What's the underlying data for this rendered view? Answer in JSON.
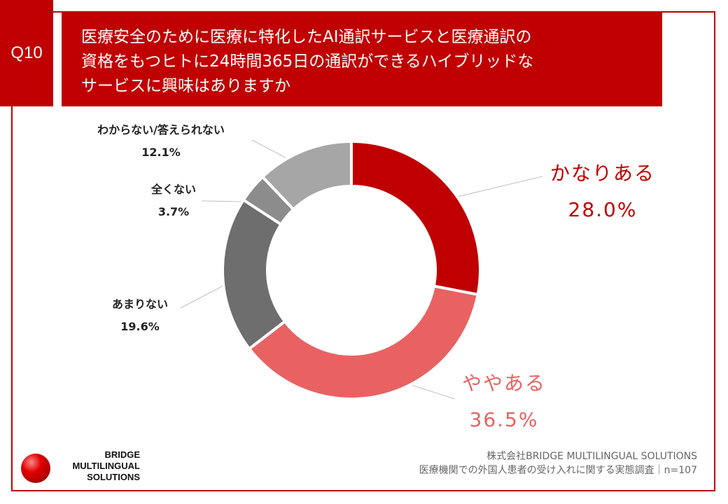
{
  "question": {
    "number": "Q10"
  },
  "chart_data": {
    "type": "pie",
    "variant": "donut",
    "title": "医療安全のために医療に特化したAI通訳サービスと医療通訳の\n資格をもつヒトに24時間365日の通訳ができるハイブリッドな\nサービスに興味はありますか",
    "slices": [
      {
        "label": "かなりある",
        "value": 28.0,
        "value_label": "28.0%",
        "color": "#c00000"
      },
      {
        "label": "ややある",
        "value": 36.5,
        "value_label": "36.5%",
        "color": "#e86262"
      },
      {
        "label": "あまりない",
        "value": 19.6,
        "value_label": "19.6%",
        "color": "#6e6e6e"
      },
      {
        "label": "全くない",
        "value": 3.7,
        "value_label": "3.7%",
        "color": "#8c8c8c"
      },
      {
        "label": "わからない/答えられない",
        "value": 12.1,
        "value_label": "12.1%",
        "color": "#a6a6a6"
      }
    ]
  },
  "logo": {
    "line1": "BRIDGE",
    "line2": "MULTILINGUAL",
    "line3": "SOLUTIONS"
  },
  "source": {
    "company": "株式会社BRIDGE MULTILINGUAL SOLUTIONS",
    "survey": "医療機関での外国人患者の受け入れに関する実態調査｜n=107"
  }
}
